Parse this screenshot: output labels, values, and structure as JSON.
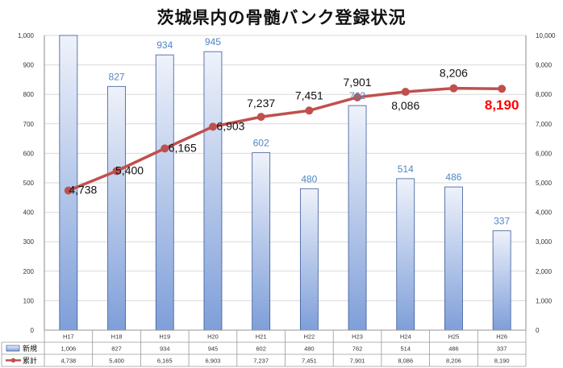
{
  "chart_data": {
    "type": "bar",
    "title": "茨城県内の骨髄バンク登録状況",
    "categories": [
      "H17",
      "H18",
      "H19",
      "H20",
      "H21",
      "H22",
      "H23",
      "H24",
      "H25",
      "H26"
    ],
    "y_left_ticks": [
      "0",
      "100",
      "200",
      "300",
      "400",
      "500",
      "600",
      "700",
      "800",
      "900",
      "1,000"
    ],
    "y_right_ticks": [
      "0",
      "1,000",
      "2,000",
      "3,000",
      "4,000",
      "5,000",
      "6,000",
      "7,000",
      "8,000",
      "9,000",
      "10,000"
    ],
    "ylim_left": [
      0,
      1000
    ],
    "ylim_right": [
      0,
      10000
    ],
    "grid": true,
    "series": [
      {
        "name": "新規",
        "kind": "bar",
        "axis": "left",
        "values": [
          1006,
          827,
          934,
          945,
          602,
          480,
          762,
          514,
          486,
          337
        ],
        "labels": [
          "",
          "827",
          "934",
          "945",
          "602",
          "480",
          "762",
          "514",
          "486",
          "337"
        ],
        "table_values": [
          "1,006",
          "827",
          "934",
          "945",
          "602",
          "480",
          "762",
          "514",
          "486",
          "337"
        ],
        "color": "#4f7cc8"
      },
      {
        "name": "累計",
        "kind": "line",
        "axis": "right",
        "values": [
          4738,
          5400,
          6165,
          6903,
          7237,
          7451,
          7901,
          8086,
          8206,
          8190
        ],
        "labels": [
          "4,738",
          "5,400",
          "6,165",
          "6,903",
          "7,237",
          "7,451",
          "7,901",
          "8,086",
          "8,206",
          "8,190"
        ],
        "table_values": [
          "4,738",
          "5,400",
          "6,165",
          "6,903",
          "7,237",
          "7,451",
          "7,901",
          "8,086",
          "8,206",
          "8,190"
        ],
        "color": "#c0504d",
        "highlight_color": "#ff0000"
      }
    ]
  }
}
